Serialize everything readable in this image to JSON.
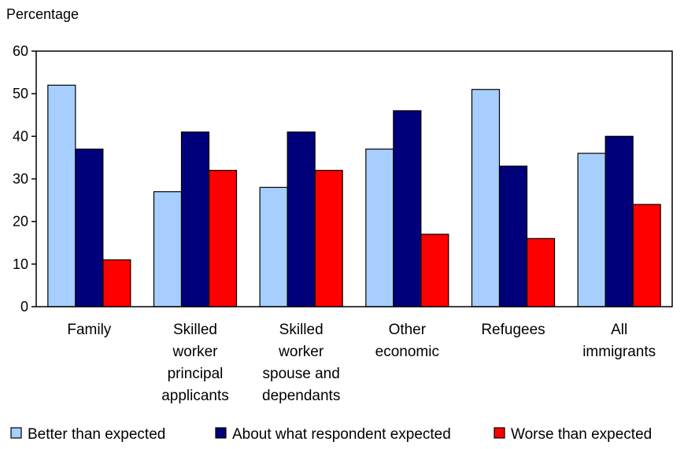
{
  "chart_data": {
    "type": "bar",
    "title": "",
    "ylabel": "Percentage",
    "xlabel": "",
    "ylim": [
      0,
      60
    ],
    "yticks": [
      0,
      10,
      20,
      30,
      40,
      50,
      60
    ],
    "grid": false,
    "legend_position": "bottom",
    "categories": [
      [
        "Family"
      ],
      [
        "Skilled",
        "worker",
        "principal",
        "applicants"
      ],
      [
        "Skilled",
        "worker",
        "spouse and",
        "dependants"
      ],
      [
        "Other",
        "economic"
      ],
      [
        "Refugees"
      ],
      [
        "All",
        "immigrants"
      ]
    ],
    "series": [
      {
        "name": "Better than expected",
        "color": "#a6cfff",
        "values": [
          52,
          27,
          28,
          37,
          51,
          36
        ]
      },
      {
        "name": "About what respondent expected",
        "color": "#00007a",
        "values": [
          37,
          41,
          41,
          46,
          33,
          40
        ]
      },
      {
        "name": "Worse than expected",
        "color": "#ff0000",
        "values": [
          11,
          32,
          32,
          17,
          16,
          24
        ]
      }
    ]
  }
}
